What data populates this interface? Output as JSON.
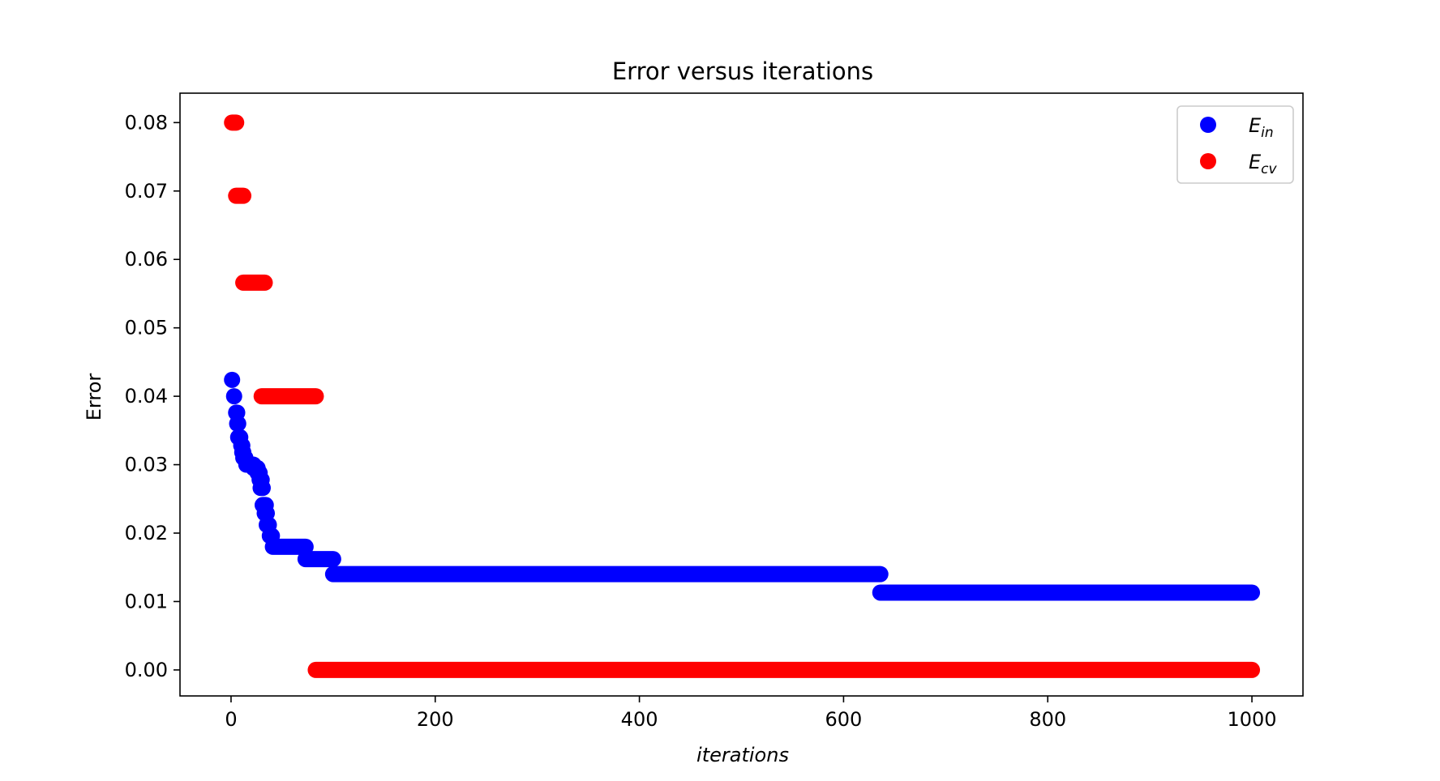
{
  "chart_data": {
    "type": "scatter",
    "title": "Error versus iterations",
    "xlabel": "iterations",
    "ylabel": "Error",
    "xlim": [
      -50,
      1050
    ],
    "ylim": [
      -0.0038,
      0.0843
    ],
    "x_ticks": [
      0,
      200,
      400,
      600,
      800,
      1000
    ],
    "y_ticks": [
      0.0,
      0.01,
      0.02,
      0.03,
      0.04,
      0.05,
      0.06,
      0.07,
      0.08
    ],
    "y_tick_labels": [
      "0.00",
      "0.01",
      "0.02",
      "0.03",
      "0.04",
      "0.05",
      "0.06",
      "0.07",
      "0.08"
    ],
    "grid": false,
    "legend_position": "top-right",
    "series": [
      {
        "name": "E",
        "name_subscript": "in",
        "color": "#0000ff",
        "segments": [
          {
            "x_start": 1,
            "x_end": 1,
            "y": 0.0424
          },
          {
            "x_start": 3,
            "x_end": 3,
            "y": 0.04
          },
          {
            "x_start": 5,
            "x_end": 6,
            "y": 0.0376
          },
          {
            "x_start": 6,
            "x_end": 7,
            "y": 0.036
          },
          {
            "x_start": 7,
            "x_end": 9,
            "y": 0.034
          },
          {
            "x_start": 10,
            "x_end": 11,
            "y": 0.0328
          },
          {
            "x_start": 11,
            "x_end": 12,
            "y": 0.0318
          },
          {
            "x_start": 12,
            "x_end": 14,
            "y": 0.031
          },
          {
            "x_start": 15,
            "x_end": 22,
            "y": 0.03
          },
          {
            "x_start": 22,
            "x_end": 26,
            "y": 0.0295
          },
          {
            "x_start": 26,
            "x_end": 28,
            "y": 0.0288
          },
          {
            "x_start": 28,
            "x_end": 30,
            "y": 0.0278
          },
          {
            "x_start": 29,
            "x_end": 31,
            "y": 0.0266
          },
          {
            "x_start": 31,
            "x_end": 34,
            "y": 0.0241
          },
          {
            "x_start": 33,
            "x_end": 35,
            "y": 0.0229
          },
          {
            "x_start": 35,
            "x_end": 37,
            "y": 0.0212
          },
          {
            "x_start": 38,
            "x_end": 40,
            "y": 0.0196
          },
          {
            "x_start": 41,
            "x_end": 73,
            "y": 0.018
          },
          {
            "x_start": 73,
            "x_end": 100,
            "y": 0.0162
          },
          {
            "x_start": 100,
            "x_end": 636,
            "y": 0.014
          },
          {
            "x_start": 636,
            "x_end": 1000,
            "y": 0.0113
          }
        ]
      },
      {
        "name": "E",
        "name_subscript": "cv",
        "color": "#ff0000",
        "segments": [
          {
            "x_start": 1,
            "x_end": 5,
            "y": 0.08
          },
          {
            "x_start": 5,
            "x_end": 12,
            "y": 0.0693
          },
          {
            "x_start": 12,
            "x_end": 33,
            "y": 0.0566
          },
          {
            "x_start": 30,
            "x_end": 83,
            "y": 0.04
          },
          {
            "x_start": 83,
            "x_end": 1000,
            "y": 0.0
          }
        ]
      }
    ]
  }
}
